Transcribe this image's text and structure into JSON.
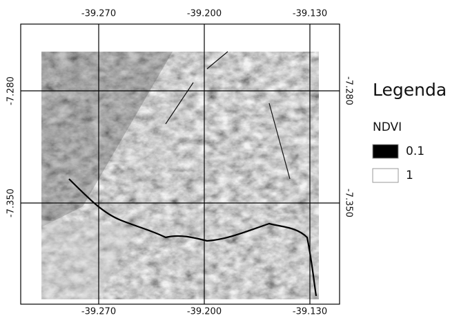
{
  "graticule": {
    "longitudes": [
      "-39.270",
      "-39.200",
      "-39.130"
    ],
    "latitudes": [
      "-7.280",
      "-7.350"
    ]
  },
  "legend": {
    "title": "Legenda",
    "layer": "NDVI",
    "items": [
      {
        "label": "0.1",
        "color": "#000000"
      },
      {
        "label": "1",
        "color": "#ffffff"
      }
    ]
  }
}
